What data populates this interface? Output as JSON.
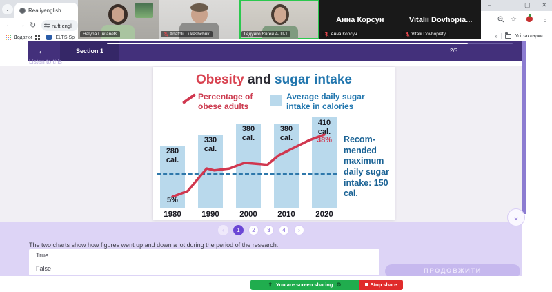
{
  "colors": {
    "accent_purple": "#6b46d5",
    "header_purple": "#43307b",
    "lavender_panel": "#ddd4f6",
    "bar_fill": "#b9d9ec",
    "line_red": "#d0374f",
    "chart_blue": "#2176ae",
    "share_green": "#20ad4e",
    "stop_red": "#e02b2b"
  },
  "browser": {
    "tab_title": "Realiyenglish",
    "address": "nuft.engli",
    "bookmarks": {
      "apps_label": "Додатки",
      "bookmark1": "IELTS Sp",
      "overflow": "»",
      "all_bookmarks": "Усі закладки"
    },
    "window": {
      "minimize": "–",
      "maximize": "▢",
      "close": "✕"
    },
    "nav": {
      "back": "←",
      "forward": "→",
      "reload": "↻"
    },
    "menu_dots": "⋮",
    "star": "☆",
    "tab_search_chevron": "⌄"
  },
  "meeting": {
    "participants": [
      {
        "name": "Halyna Lukianets",
        "muted": false
      },
      {
        "name": "Anatolii Lukashchuk",
        "muted": true
      },
      {
        "name": "Гєдунко Євген А-ТІ-1",
        "muted": false
      },
      {
        "name": "Анна Корсун",
        "big_name": "Анна Корсун",
        "muted": true
      },
      {
        "name": "Vitalii Dovhopiatyi",
        "big_name": "Vitalii  Dovhopia...",
        "muted": true
      }
    ],
    "share_bar": {
      "sharing_label": "You are screen sharing",
      "stop_label": "Stop share",
      "gear": "⚙",
      "arrow": "⬆"
    }
  },
  "quiz": {
    "header": {
      "back": "←",
      "section": "Section 1",
      "page": "2/5",
      "progress_pct": 89
    },
    "instruction": "Listen to this",
    "pagination": {
      "items": [
        "‹",
        "1",
        "2",
        "3",
        "4",
        "›"
      ],
      "active": "1"
    },
    "question": "The two charts show how figures went up and down a lot during the period of the research.",
    "options": [
      "True",
      "False"
    ],
    "continue_label": "ПРОДОВЖИТИ",
    "scroll_chevron": "⌄"
  },
  "chart_data": {
    "type": "bar+line",
    "title_parts": [
      {
        "text": "Obesity",
        "color": "#d8414f"
      },
      {
        "text": " and ",
        "color": "#2a2a33"
      },
      {
        "text": "sugar intake",
        "color": "#2176ae"
      }
    ],
    "categories": [
      "1980",
      "1990",
      "2000",
      "2010",
      "2020"
    ],
    "series": [
      {
        "name": "Average daily sugar intake in calories",
        "type": "bar",
        "unit": "cal.",
        "values": [
          280,
          330,
          380,
          380,
          410
        ],
        "color": "#b9d9ec"
      },
      {
        "name": "Percentage of obese adults",
        "type": "line",
        "color": "#d0374f",
        "x": [
          1980,
          1984,
          1989,
          1991,
          1995,
          1999,
          2002,
          2005,
          2008,
          2012,
          2016,
          2020
        ],
        "values": [
          5,
          8,
          20,
          19,
          20,
          23,
          22.5,
          22,
          27,
          31,
          35,
          38
        ],
        "first_label": "5%",
        "last_label": "38%"
      }
    ],
    "reference_line": {
      "value": 150,
      "unit": "cal.",
      "color": "#2e78ab",
      "label": "Recom- mended maximum daily sugar intake: 150 cal."
    },
    "ylim_bars": [
      0,
      430
    ],
    "grid": false,
    "legend_position": "top"
  }
}
